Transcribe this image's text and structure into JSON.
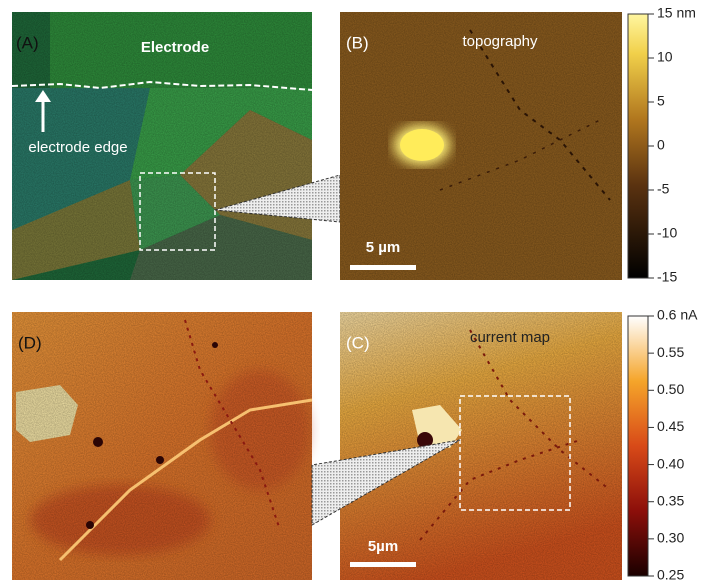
{
  "panels": {
    "A": {
      "label": "(A)",
      "title": "Electrode",
      "annotation": "electrode edge"
    },
    "B": {
      "label": "(B)",
      "title": "topography",
      "scale_bar": "5 µm"
    },
    "C": {
      "label": "(C)",
      "title": "current map",
      "scale_bar": "5µm"
    },
    "D": {
      "label": "(D)"
    }
  },
  "colorbars": [
    {
      "lim": [
        -15,
        15
      ],
      "ticks": [
        {
          "value": 15,
          "label": "15 nm"
        },
        10,
        5,
        0,
        -5,
        -10,
        -15
      ]
    },
    {
      "lim": [
        0.25,
        0.6
      ],
      "ticks": [
        {
          "value": 0.6,
          "label": "0.6 nA"
        },
        0.55,
        {
          "value": 0.5,
          "label": "0.50"
        },
        0.45,
        {
          "value": 0.4,
          "label": "0.40"
        },
        0.35,
        {
          "value": 0.3,
          "label": "0.30"
        },
        0.25
      ]
    }
  ]
}
